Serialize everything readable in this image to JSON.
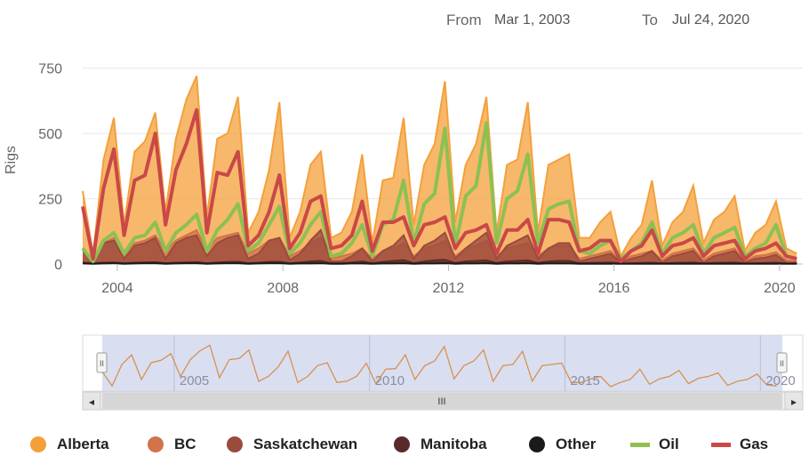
{
  "range_selector": {
    "from_label": "From",
    "from_value": "Mar 1, 2003",
    "to_label": "To",
    "to_value": "Jul 24, 2020"
  },
  "navigator": {
    "labels": [
      "2005",
      "2010",
      "2015",
      "2020"
    ],
    "scroll_grip": "III",
    "left_arrow": "◂",
    "right_arrow": "▸",
    "handle_grip": "II"
  },
  "colors": {
    "alberta": "#f4a03a",
    "bc": "#d2734a",
    "saskatchewan": "#9b4a3e",
    "manitoba": "#5a2a2a",
    "other": "#1a1a1a",
    "oil": "#8cc152",
    "gas": "#c94848",
    "navigator_fill": "#cfd7ee",
    "navigator_line": "#d8914f"
  },
  "chart_data": {
    "type": "area",
    "ylabel": "Rigs",
    "yticks": [
      0,
      250,
      500,
      750
    ],
    "ylim": [
      0,
      800
    ],
    "xlim": [
      "2003-03-01",
      "2020-07-24"
    ],
    "xticks": [
      "2004",
      "2008",
      "2012",
      "2016",
      "2020"
    ],
    "grid": true,
    "legend_position": "bottom",
    "x": [
      "2003-03",
      "2003-06",
      "2003-09",
      "2003-12",
      "2004-03",
      "2004-06",
      "2004-09",
      "2004-12",
      "2005-03",
      "2005-06",
      "2005-09",
      "2005-12",
      "2006-03",
      "2006-06",
      "2006-09",
      "2006-12",
      "2007-03",
      "2007-06",
      "2007-09",
      "2007-12",
      "2008-03",
      "2008-06",
      "2008-09",
      "2008-12",
      "2009-03",
      "2009-06",
      "2009-09",
      "2009-12",
      "2010-03",
      "2010-06",
      "2010-09",
      "2010-12",
      "2011-03",
      "2011-06",
      "2011-09",
      "2011-12",
      "2012-03",
      "2012-06",
      "2012-09",
      "2012-12",
      "2013-03",
      "2013-06",
      "2013-09",
      "2013-12",
      "2014-03",
      "2014-06",
      "2014-09",
      "2014-12",
      "2015-03",
      "2015-06",
      "2015-09",
      "2015-12",
      "2016-03",
      "2016-06",
      "2016-09",
      "2016-12",
      "2017-03",
      "2017-06",
      "2017-09",
      "2017-12",
      "2018-03",
      "2018-06",
      "2018-09",
      "2018-12",
      "2019-03",
      "2019-06",
      "2019-09",
      "2019-12",
      "2020-03",
      "2020-06"
    ],
    "series": [
      {
        "name": "Alberta",
        "kind": "area",
        "values": [
          280,
          40,
          400,
          560,
          150,
          430,
          470,
          580,
          200,
          480,
          630,
          720,
          180,
          480,
          500,
          640,
          120,
          200,
          360,
          620,
          100,
          200,
          380,
          430,
          100,
          120,
          200,
          420,
          80,
          320,
          330,
          560,
          150,
          380,
          460,
          700,
          160,
          380,
          460,
          640,
          120,
          380,
          400,
          620,
          120,
          380,
          400,
          420,
          100,
          100,
          160,
          200,
          30,
          100,
          150,
          320,
          70,
          160,
          200,
          300,
          80,
          170,
          200,
          260,
          50,
          120,
          150,
          240,
          60,
          40
        ]
      },
      {
        "name": "BC",
        "kind": "area",
        "values": [
          60,
          20,
          80,
          100,
          40,
          80,
          90,
          110,
          50,
          90,
          110,
          130,
          50,
          100,
          110,
          120,
          40,
          60,
          90,
          100,
          30,
          50,
          80,
          100,
          20,
          30,
          40,
          60,
          20,
          50,
          60,
          80,
          30,
          60,
          70,
          90,
          30,
          60,
          70,
          90,
          30,
          60,
          70,
          80,
          30,
          60,
          70,
          70,
          20,
          30,
          40,
          50,
          10,
          30,
          40,
          50,
          15,
          40,
          50,
          60,
          15,
          40,
          50,
          60,
          10,
          30,
          35,
          45,
          15,
          10
        ]
      },
      {
        "name": "Saskatchewan",
        "kind": "area",
        "values": [
          60,
          10,
          80,
          90,
          20,
          70,
          80,
          100,
          20,
          80,
          100,
          110,
          30,
          80,
          100,
          110,
          20,
          40,
          90,
          100,
          15,
          40,
          90,
          130,
          10,
          10,
          30,
          60,
          10,
          50,
          70,
          110,
          20,
          70,
          90,
          120,
          20,
          60,
          90,
          120,
          20,
          70,
          90,
          110,
          20,
          60,
          80,
          80,
          10,
          20,
          30,
          40,
          5,
          20,
          30,
          50,
          5,
          30,
          40,
          50,
          5,
          30,
          40,
          50,
          5,
          20,
          25,
          35,
          5,
          5
        ]
      },
      {
        "name": "Manitoba",
        "kind": "area",
        "values": [
          5,
          3,
          5,
          6,
          3,
          5,
          6,
          7,
          3,
          5,
          6,
          7,
          3,
          6,
          8,
          9,
          3,
          5,
          8,
          9,
          3,
          6,
          10,
          12,
          3,
          3,
          6,
          10,
          3,
          8,
          12,
          15,
          3,
          10,
          14,
          16,
          4,
          10,
          12,
          14,
          4,
          10,
          12,
          14,
          4,
          10,
          12,
          12,
          3,
          4,
          5,
          6,
          2,
          3,
          4,
          5,
          2,
          4,
          5,
          6,
          2,
          4,
          5,
          6,
          2,
          3,
          4,
          5,
          2,
          2
        ]
      },
      {
        "name": "Other",
        "kind": "area",
        "values": [
          2,
          1,
          2,
          3,
          1,
          2,
          3,
          3,
          1,
          2,
          3,
          3,
          1,
          2,
          3,
          3,
          1,
          2,
          3,
          3,
          1,
          2,
          2,
          3,
          1,
          1,
          2,
          2,
          1,
          2,
          2,
          3,
          1,
          2,
          2,
          3,
          1,
          2,
          2,
          3,
          1,
          2,
          2,
          3,
          1,
          2,
          2,
          2,
          1,
          1,
          1,
          1,
          1,
          1,
          1,
          1,
          1,
          1,
          1,
          1,
          1,
          1,
          1,
          1,
          1,
          1,
          1,
          1,
          1,
          1
        ]
      },
      {
        "name": "Oil",
        "kind": "line",
        "values": [
          60,
          10,
          90,
          120,
          40,
          100,
          110,
          160,
          50,
          120,
          150,
          190,
          50,
          130,
          170,
          230,
          50,
          80,
          150,
          220,
          40,
          80,
          150,
          200,
          30,
          40,
          80,
          150,
          30,
          150,
          170,
          320,
          80,
          230,
          270,
          520,
          70,
          260,
          300,
          540,
          80,
          250,
          280,
          420,
          80,
          210,
          230,
          240,
          50,
          40,
          70,
          90,
          20,
          50,
          80,
          160,
          40,
          100,
          120,
          150,
          40,
          100,
          120,
          140,
          30,
          60,
          80,
          150,
          30,
          20
        ]
      },
      {
        "name": "Gas",
        "kind": "line",
        "values": [
          220,
          20,
          290,
          440,
          110,
          320,
          340,
          500,
          150,
          360,
          460,
          590,
          120,
          350,
          340,
          430,
          70,
          110,
          200,
          340,
          60,
          120,
          240,
          260,
          60,
          70,
          110,
          240,
          50,
          160,
          160,
          180,
          70,
          150,
          160,
          180,
          60,
          120,
          130,
          150,
          40,
          130,
          130,
          170,
          40,
          170,
          170,
          160,
          50,
          60,
          90,
          90,
          10,
          50,
          70,
          130,
          30,
          70,
          80,
          100,
          30,
          70,
          80,
          90,
          20,
          50,
          60,
          80,
          30,
          20
        ]
      }
    ]
  },
  "legend": [
    {
      "key": "alberta",
      "label": "Alberta",
      "shape": "dot"
    },
    {
      "key": "bc",
      "label": "BC",
      "shape": "dot"
    },
    {
      "key": "saskatchewan",
      "label": "Saskatchewan",
      "shape": "dot"
    },
    {
      "key": "manitoba",
      "label": "Manitoba",
      "shape": "dot"
    },
    {
      "key": "other",
      "label": "Other",
      "shape": "dot"
    },
    {
      "key": "oil",
      "label": "Oil",
      "shape": "bar"
    },
    {
      "key": "gas",
      "label": "Gas",
      "shape": "bar"
    }
  ]
}
